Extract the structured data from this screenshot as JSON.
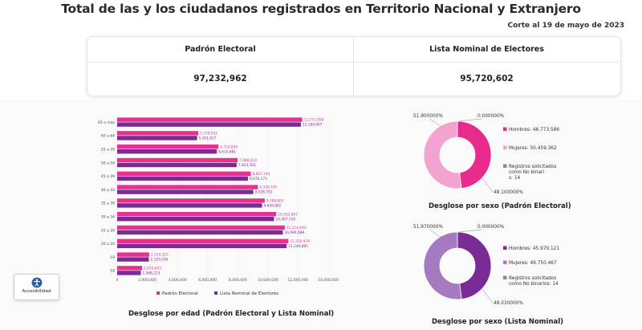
{
  "page": {
    "title": "Total de las y los ciudadanos registrados en Territorio Nacional y Extranjero",
    "cut_date": "Corte al 19 de mayo de 2023"
  },
  "summary": {
    "padron_label": "Padrón Electoral",
    "padron_value": "97,232,962",
    "lista_label": "Lista Nominal de Electores",
    "lista_value": "95,720,602"
  },
  "accessibility": {
    "label": "Accesibilidad",
    "icon": "accessibility-icon"
  },
  "colors": {
    "padron": "#e8318f",
    "lista": "#7b2a96",
    "pie1_hombres": "#e72a8b",
    "pie1_mujeres": "#f3a3cf",
    "pie2_hombres": "#7a2b95",
    "pie2_mujeres": "#a67ac0"
  },
  "chart_data": [
    {
      "type": "bar",
      "orientation": "horizontal",
      "title": "Desglose por edad (Padrón Electoral y Lista Nominal)",
      "categories": [
        "65 o más",
        "60 a 64",
        "55 a 59",
        "50 a 54",
        "45 a 49",
        "40 a 44",
        "35 a 39",
        "30 a 34",
        "25 a 29",
        "20 a 24",
        "19",
        "18"
      ],
      "series": [
        {
          "name": "Padrón Electoral",
          "values": [
            12273958,
            5379932,
            6720809,
            7988224,
            8867744,
            9330740,
            9788805,
            10552887,
            11114443,
            11356979,
            2124323,
            1650443
          ],
          "labels": [
            "12,273,958",
            "5,379,932",
            "6,720,809",
            "7,988,224",
            "8,867,744",
            "9,330,740",
            "9,788,805",
            "10,552,887",
            "11,114,443",
            "11,356,979",
            "2,124,323",
            "1,650,443"
          ]
        },
        {
          "name": "Lista Nominal de Electores",
          "values": [
            12184907,
            5301817,
            6610881,
            7924393,
            8676171,
            9028791,
            9609881,
            10407729,
            10990088,
            11246885,
            2103036,
            1568223
          ],
          "labels": [
            "12,184,907",
            "5,301,817",
            "6,610,881",
            "7,924,393",
            "8,676,171",
            "9,028,791",
            "9,609,881",
            "10,407,729",
            "10,990,088",
            "11,246,885",
            "2,103,036",
            "1,568,223"
          ]
        }
      ],
      "xticks": [
        "0",
        "2,000,000",
        "4,000,000",
        "6,000,000",
        "8,000,000",
        "10,000,000",
        "12,000,000",
        "14,000,000"
      ],
      "xlim": [
        0,
        14000000
      ],
      "legend_position": "bottom"
    },
    {
      "type": "pie",
      "title": "Desglose por sexo (Padrón Electoral)",
      "slices": [
        {
          "name": "Hombres",
          "legend": "Hombres: 46.773.586",
          "percent_label": "48.100000%",
          "value": 48.1
        },
        {
          "name": "Mujeres",
          "legend": "Mujeres: 50.459.362",
          "percent_label": "51.900000%",
          "value": 51.9
        },
        {
          "name": "No binarios",
          "legend": "Registros solicitados como No binarios: 14",
          "percent_label": "0.000000%",
          "value": 0.0
        }
      ]
    },
    {
      "type": "pie",
      "title": "Desglose por sexo (Lista Nominal)",
      "slices": [
        {
          "name": "Hombres",
          "legend": "Hombres: 45.970.121",
          "percent_label": "48.030000%",
          "value": 48.03
        },
        {
          "name": "Mujeres",
          "legend": "Mujeres: 49.750.467",
          "percent_label": "51.970000%",
          "value": 51.97
        },
        {
          "name": "No binarios",
          "legend": "Registros solicitados como No binarios: 14",
          "percent_label": "0.000000%",
          "value": 0.0
        }
      ]
    }
  ]
}
